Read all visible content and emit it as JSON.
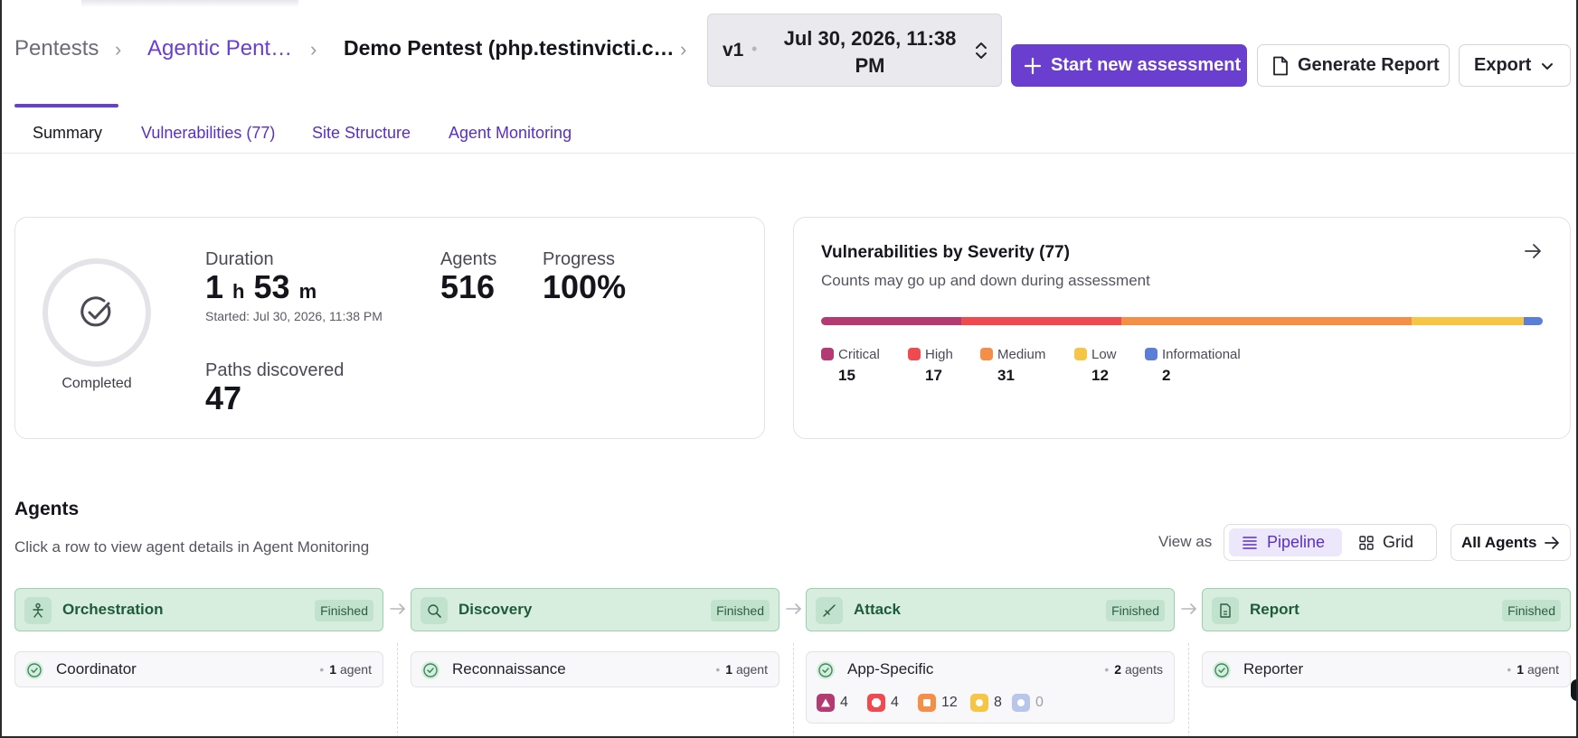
{
  "breadcrumb": {
    "items": [
      "Pentests",
      "Agentic Pent…",
      "Demo Pentest (php.testinvicti.c…"
    ],
    "separator": ">"
  },
  "version": {
    "label": "v1",
    "date": "Jul 30, 2026, 11:38 PM"
  },
  "toolbar": {
    "start_label": "Start new assessment",
    "report_label": "Generate Report",
    "export_label": "Export"
  },
  "tabs": [
    {
      "label": "Summary",
      "active": true
    },
    {
      "label": "Vulnerabilities (77)",
      "active": false
    },
    {
      "label": "Site Structure",
      "active": false
    },
    {
      "label": "Agent Monitoring",
      "active": false
    }
  ],
  "stats": {
    "status": "Completed",
    "duration_label": "Duration",
    "duration_hours": "1",
    "duration_hours_unit": "h",
    "duration_minutes": "53",
    "duration_minutes_unit": "m",
    "started": "Started: Jul 30, 2026, 11:38 PM",
    "agents_label": "Agents",
    "agents_value": "516",
    "progress_label": "Progress",
    "progress_value": "100%",
    "paths_label": "Paths discovered",
    "paths_value": "47"
  },
  "vulnerabilities": {
    "title": "Vulnerabilities by Severity (77)",
    "subtitle": "Counts may go up and down during assessment",
    "severities": [
      {
        "name": "Critical",
        "count": "15",
        "value": 15,
        "color": "#b33a72"
      },
      {
        "name": "High",
        "count": "17",
        "value": 17,
        "color": "#ee4a4f"
      },
      {
        "name": "Medium",
        "count": "31",
        "value": 31,
        "color": "#f58f48"
      },
      {
        "name": "Low",
        "count": "12",
        "value": 12,
        "color": "#f6c546"
      },
      {
        "name": "Informational",
        "count": "2",
        "value": 2,
        "color": "#5b7fd6"
      }
    ]
  },
  "agents": {
    "title": "Agents",
    "subtitle": "Click a row to view agent details in Agent Monitoring",
    "view_as": "View as",
    "view_pipeline": "Pipeline",
    "view_grid": "Grid",
    "all_agents": "All Agents",
    "stages": [
      {
        "name": "Orchestration",
        "status": "Finished",
        "icon": "orchestration-icon"
      },
      {
        "name": "Discovery",
        "status": "Finished",
        "icon": "discovery-icon"
      },
      {
        "name": "Attack",
        "status": "Finished",
        "icon": "attack-icon"
      },
      {
        "name": "Report",
        "status": "Finished",
        "icon": "report-icon"
      }
    ],
    "rows": [
      {
        "name": "Coordinator",
        "count": "1",
        "unit": "agent"
      },
      {
        "name": "Reconnaissance",
        "count": "1",
        "unit": "agent"
      },
      {
        "name": "App-Specific",
        "count": "2",
        "unit": "agents",
        "severity_counts": [
          "4",
          "4",
          "12",
          "8",
          "0"
        ]
      },
      {
        "name": "Reporter",
        "count": "1",
        "unit": "agent"
      }
    ]
  },
  "colors": {
    "accent": "#6a3fd0",
    "stage_bg": "#d7eedf",
    "stage_text": "#1e5b3a"
  }
}
